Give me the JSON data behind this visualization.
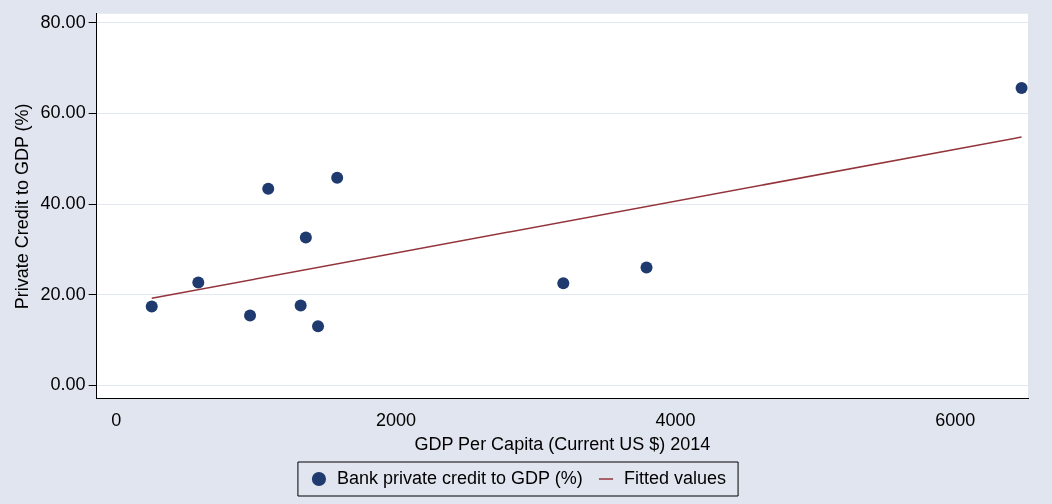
{
  "chart_data": {
    "type": "scatter",
    "xlabel": "GDP Per Capita (Current US $) 2014",
    "ylabel": "Private Credit to GDP (%)",
    "xlim": [
      -140,
      6520
    ],
    "xticks": [
      0,
      2000,
      4000,
      6000
    ],
    "ylim": [
      -3,
      82
    ],
    "yticks": [
      {
        "value": 0,
        "label": "0.00"
      },
      {
        "value": 20,
        "label": "20.00"
      },
      {
        "value": 40,
        "label": "40.00"
      },
      {
        "value": 60,
        "label": "60.00"
      },
      {
        "value": 80,
        "label": "80.00"
      }
    ],
    "grid": "y",
    "legend": "bottom",
    "series": [
      {
        "name": "Bank private credit to GDP (%)",
        "marker": "circle",
        "color": "#1f3a6e",
        "x": [
          254,
          587,
          957,
          1087,
          1319,
          1356,
          1443,
          1580,
          3197,
          3792,
          6474
        ],
        "values": [
          17.4,
          22.7,
          15.4,
          43.4,
          17.6,
          32.6,
          13.0,
          45.8,
          22.5,
          26.0,
          65.6
        ]
      },
      {
        "name": "Fitted values",
        "type": "line",
        "marker": "none",
        "color": "#93343a",
        "x": [
          254,
          6474
        ],
        "values": [
          19.2,
          54.8
        ]
      }
    ]
  }
}
